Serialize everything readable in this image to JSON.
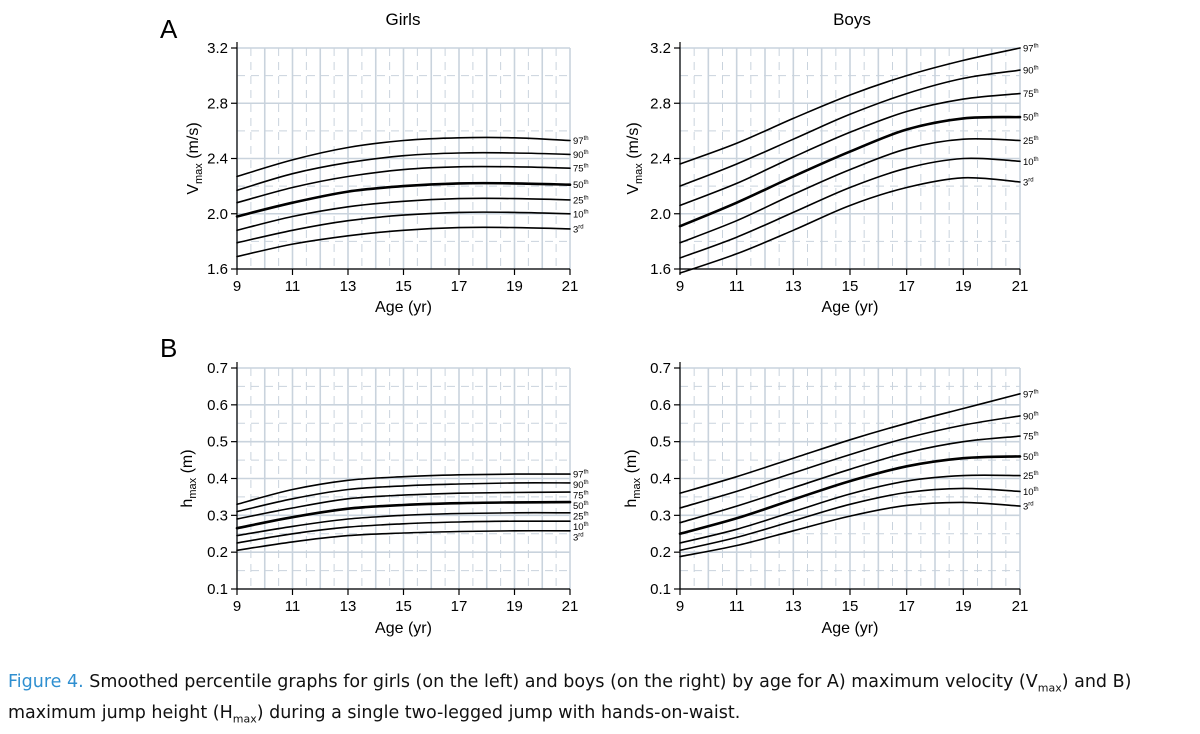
{
  "panel_labels": {
    "a": "A",
    "b": "B"
  },
  "caption": {
    "label": "Figure 4.",
    "text_1": " Smoothed percentile graphs for girls (on the left) and boys (on the right) by age for A) maximum velocity (V",
    "sub_1": "max",
    "text_2": ") and B) maximum jump height (H",
    "sub_2": "max",
    "text_3": ") during a single two-legged jump with hands-on-waist."
  },
  "colors": {
    "curve": "#000000",
    "grid": "#c9d3dd",
    "axis": "#000000",
    "caption_label": "#2f8fd0"
  },
  "chart_data": [
    {
      "type": "line",
      "panel": "A",
      "title": "Girls",
      "xlabel": "Age (yr)",
      "ylabel_main": "V",
      "ylabel_sub": "max",
      "ylabel_unit": " (m/s)",
      "xlim": [
        9,
        21
      ],
      "ylim": [
        1.6,
        3.2
      ],
      "xticks": [
        9,
        11,
        13,
        15,
        17,
        19,
        21
      ],
      "yticks": [
        1.6,
        2.0,
        2.4,
        2.8,
        3.2
      ],
      "ytick_decimals": 1,
      "x": [
        9,
        11,
        13,
        15,
        17,
        19,
        21
      ],
      "series": [
        {
          "name": "97th",
          "label_num": "97",
          "label_sup": "th",
          "values": [
            2.27,
            2.39,
            2.48,
            2.53,
            2.55,
            2.55,
            2.53
          ]
        },
        {
          "name": "90th",
          "label_num": "90",
          "label_sup": "th",
          "values": [
            2.17,
            2.29,
            2.37,
            2.42,
            2.44,
            2.44,
            2.43
          ]
        },
        {
          "name": "75th",
          "label_num": "75",
          "label_sup": "th",
          "values": [
            2.08,
            2.19,
            2.27,
            2.32,
            2.34,
            2.34,
            2.33
          ]
        },
        {
          "name": "50th",
          "label_num": "50",
          "label_sup": "th",
          "values": [
            1.98,
            2.08,
            2.16,
            2.2,
            2.22,
            2.22,
            2.21
          ]
        },
        {
          "name": "25th",
          "label_num": "25",
          "label_sup": "th",
          "values": [
            1.88,
            1.98,
            2.05,
            2.09,
            2.11,
            2.11,
            2.1
          ]
        },
        {
          "name": "10th",
          "label_num": "10",
          "label_sup": "th",
          "values": [
            1.79,
            1.88,
            1.95,
            1.99,
            2.01,
            2.01,
            2.0
          ]
        },
        {
          "name": "3rd",
          "label_num": "3",
          "label_sup": "rd",
          "values": [
            1.69,
            1.78,
            1.84,
            1.88,
            1.9,
            1.9,
            1.89
          ]
        }
      ]
    },
    {
      "type": "line",
      "panel": "A",
      "title": "Boys",
      "xlabel": "Age (yr)",
      "ylabel_main": "V",
      "ylabel_sub": "max",
      "ylabel_unit": " (m/s)",
      "xlim": [
        9,
        21
      ],
      "ylim": [
        1.6,
        3.2
      ],
      "xticks": [
        9,
        11,
        13,
        15,
        17,
        19,
        21
      ],
      "yticks": [
        1.6,
        2.0,
        2.4,
        2.8,
        3.2
      ],
      "ytick_decimals": 1,
      "x": [
        9,
        11,
        13,
        15,
        17,
        19,
        21
      ],
      "series": [
        {
          "name": "97th",
          "label_num": "97",
          "label_sup": "th",
          "values": [
            2.36,
            2.51,
            2.69,
            2.86,
            3.0,
            3.11,
            3.2
          ]
        },
        {
          "name": "90th",
          "label_num": "90",
          "label_sup": "th",
          "values": [
            2.2,
            2.36,
            2.54,
            2.72,
            2.87,
            2.98,
            3.04
          ]
        },
        {
          "name": "75th",
          "label_num": "75",
          "label_sup": "th",
          "values": [
            2.06,
            2.22,
            2.41,
            2.59,
            2.74,
            2.83,
            2.87
          ]
        },
        {
          "name": "50th",
          "label_num": "50",
          "label_sup": "th",
          "values": [
            1.91,
            2.08,
            2.27,
            2.45,
            2.61,
            2.69,
            2.7
          ]
        },
        {
          "name": "25th",
          "label_num": "25",
          "label_sup": "th",
          "values": [
            1.79,
            1.95,
            2.14,
            2.32,
            2.47,
            2.54,
            2.53
          ]
        },
        {
          "name": "10th",
          "label_num": "10",
          "label_sup": "th",
          "values": [
            1.68,
            1.83,
            2.01,
            2.19,
            2.33,
            2.4,
            2.38
          ]
        },
        {
          "name": "3rd",
          "label_num": "3",
          "label_sup": "rd",
          "values": [
            1.57,
            1.71,
            1.88,
            2.06,
            2.19,
            2.26,
            2.23
          ]
        }
      ]
    },
    {
      "type": "line",
      "panel": "B",
      "title": "",
      "xlabel": "Age (yr)",
      "ylabel_main": "h",
      "ylabel_sub": "max",
      "ylabel_unit": " (m)",
      "xlim": [
        9,
        21
      ],
      "ylim": [
        0.1,
        0.7
      ],
      "xticks": [
        9,
        11,
        13,
        15,
        17,
        19,
        21
      ],
      "yticks": [
        0.1,
        0.2,
        0.3,
        0.4,
        0.5,
        0.6,
        0.7
      ],
      "ytick_decimals": 1,
      "x": [
        9,
        11,
        13,
        15,
        17,
        19,
        21
      ],
      "series": [
        {
          "name": "97th",
          "label_num": "97",
          "label_sup": "th",
          "values": [
            0.33,
            0.37,
            0.395,
            0.405,
            0.41,
            0.412,
            0.412
          ]
        },
        {
          "name": "90th",
          "label_num": "90",
          "label_sup": "th",
          "values": [
            0.31,
            0.345,
            0.37,
            0.38,
            0.385,
            0.388,
            0.388
          ]
        },
        {
          "name": "75th",
          "label_num": "75",
          "label_sup": "th",
          "values": [
            0.29,
            0.32,
            0.345,
            0.355,
            0.36,
            0.362,
            0.363
          ]
        },
        {
          "name": "50th",
          "label_num": "50",
          "label_sup": "th",
          "values": [
            0.265,
            0.295,
            0.318,
            0.328,
            0.333,
            0.335,
            0.336
          ]
        },
        {
          "name": "25th",
          "label_num": "25",
          "label_sup": "th",
          "values": [
            0.245,
            0.27,
            0.29,
            0.3,
            0.305,
            0.307,
            0.307
          ]
        },
        {
          "name": "10th",
          "label_num": "10",
          "label_sup": "th",
          "values": [
            0.225,
            0.25,
            0.268,
            0.277,
            0.282,
            0.284,
            0.284
          ]
        },
        {
          "name": "3rd",
          "label_num": "3",
          "label_sup": "rd",
          "values": [
            0.205,
            0.228,
            0.245,
            0.252,
            0.256,
            0.258,
            0.258
          ]
        }
      ]
    },
    {
      "type": "line",
      "panel": "B",
      "title": "",
      "xlabel": "Age (yr)",
      "ylabel_main": "h",
      "ylabel_sub": "max",
      "ylabel_unit": " (m)",
      "xlim": [
        9,
        21
      ],
      "ylim": [
        0.1,
        0.7
      ],
      "xticks": [
        9,
        11,
        13,
        15,
        17,
        19,
        21
      ],
      "yticks": [
        0.1,
        0.2,
        0.3,
        0.4,
        0.5,
        0.6,
        0.7
      ],
      "ytick_decimals": 1,
      "x": [
        9,
        11,
        13,
        15,
        17,
        19,
        21
      ],
      "series": [
        {
          "name": "97th",
          "label_num": "97",
          "label_sup": "th",
          "values": [
            0.36,
            0.405,
            0.455,
            0.505,
            0.55,
            0.59,
            0.63
          ]
        },
        {
          "name": "90th",
          "label_num": "90",
          "label_sup": "th",
          "values": [
            0.32,
            0.365,
            0.415,
            0.465,
            0.51,
            0.545,
            0.57
          ]
        },
        {
          "name": "75th",
          "label_num": "75",
          "label_sup": "th",
          "values": [
            0.28,
            0.325,
            0.375,
            0.425,
            0.47,
            0.5,
            0.515
          ]
        },
        {
          "name": "50th",
          "label_num": "50",
          "label_sup": "th",
          "values": [
            0.25,
            0.292,
            0.343,
            0.393,
            0.433,
            0.455,
            0.46
          ]
        },
        {
          "name": "25th",
          "label_num": "25",
          "label_sup": "th",
          "values": [
            0.225,
            0.262,
            0.31,
            0.358,
            0.393,
            0.408,
            0.408
          ]
        },
        {
          "name": "10th",
          "label_num": "10",
          "label_sup": "th",
          "values": [
            0.205,
            0.24,
            0.285,
            0.33,
            0.362,
            0.373,
            0.365
          ]
        },
        {
          "name": "3rd",
          "label_num": "3",
          "label_sup": "rd",
          "values": [
            0.188,
            0.218,
            0.258,
            0.298,
            0.327,
            0.335,
            0.325
          ]
        }
      ]
    }
  ]
}
